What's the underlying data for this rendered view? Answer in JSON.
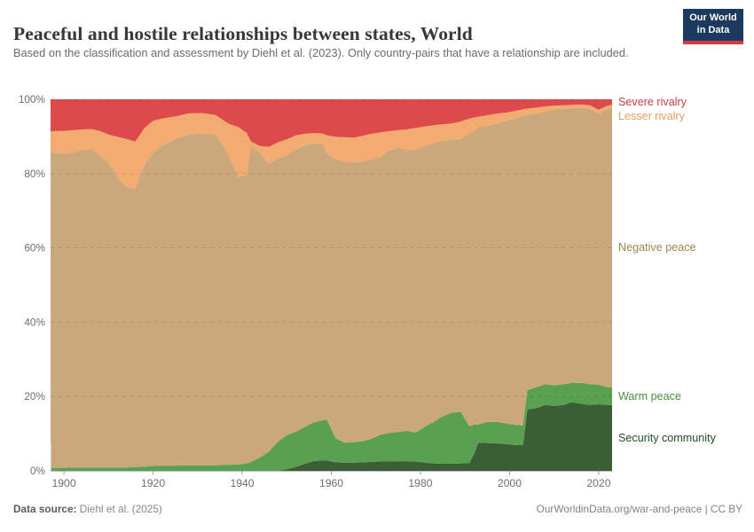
{
  "header": {
    "title": "Peaceful and hostile relationships between states, World",
    "subtitle": "Based on the classification and assessment by Diehl et al. (2023). Only country-pairs that have a relationship are included.",
    "logo": {
      "line1": "Our World",
      "line2": "in Data"
    }
  },
  "footer": {
    "datasource_label": "Data source:",
    "datasource_value": " Diehl et al. (2025)",
    "credit": "OurWorldinData.org/war-and-peace | CC BY"
  },
  "chart_data": {
    "type": "area",
    "stacking": "percent",
    "title": "Peaceful and hostile relationships between states, World",
    "xlabel": "",
    "ylabel": "",
    "xlim": [
      1897,
      2023
    ],
    "ylim": [
      0,
      100
    ],
    "grid": "dashed-horizontal",
    "legend_position": "right",
    "x_ticks": [
      1900,
      1920,
      1940,
      1960,
      1980,
      2000,
      2020
    ],
    "y_ticks": [
      {
        "v": 0,
        "label": "0%"
      },
      {
        "v": 20,
        "label": "20%"
      },
      {
        "v": 40,
        "label": "40%"
      },
      {
        "v": 60,
        "label": "60%"
      },
      {
        "v": 80,
        "label": "80%"
      },
      {
        "v": 100,
        "label": "100%"
      }
    ],
    "x": [
      1897,
      1900,
      1903,
      1906,
      1908,
      1910,
      1912,
      1914,
      1916,
      1918,
      1920,
      1922,
      1925,
      1928,
      1931,
      1934,
      1937,
      1939,
      1941,
      1942,
      1944,
      1946,
      1948,
      1950,
      1952,
      1954,
      1956,
      1958,
      1959,
      1961,
      1963,
      1965,
      1967,
      1969,
      1971,
      1973,
      1975,
      1977,
      1979,
      1981,
      1983,
      1985,
      1987,
      1989,
      1991,
      1992,
      1993,
      1995,
      1997,
      1999,
      2001,
      2003,
      2004,
      2006,
      2008,
      2010,
      2012,
      2014,
      2016,
      2018,
      2020,
      2022,
      2023
    ],
    "series": [
      {
        "name": "Security community",
        "color": "#3c5e35",
        "label_color": "#1f4e28",
        "values": [
          0,
          0,
          0,
          0,
          0,
          0,
          0,
          0,
          0,
          0,
          0,
          0,
          0,
          0,
          0,
          0,
          0,
          0,
          0,
          0,
          0,
          0,
          0,
          0.4,
          1.0,
          1.9,
          2.6,
          2.8,
          2.8,
          2.3,
          2.2,
          2.2,
          2.3,
          2.4,
          2.5,
          2.5,
          2.6,
          2.6,
          2.5,
          2.2,
          2.0,
          1.9,
          1.9,
          2.0,
          2.1,
          4.5,
          7.6,
          7.5,
          7.4,
          7.2,
          7.0,
          6.9,
          16.5,
          16.9,
          17.7,
          17.5,
          17.7,
          18.5,
          18.1,
          17.7,
          17.9,
          17.7,
          17.7
        ]
      },
      {
        "name": "Warm peace",
        "color": "#5aa052",
        "label_color": "#468f3f",
        "values": [
          0.8,
          0.8,
          0.9,
          0.9,
          0.9,
          0.9,
          0.9,
          0.9,
          1.0,
          1.1,
          1.3,
          1.4,
          1.4,
          1.5,
          1.5,
          1.5,
          1.6,
          1.7,
          2.0,
          2.4,
          3.6,
          5.2,
          7.8,
          9.2,
          9.5,
          9.9,
          10.4,
          10.8,
          11.0,
          6.4,
          5.4,
          5.5,
          5.7,
          6.2,
          7.2,
          7.7,
          7.9,
          8.2,
          7.8,
          9.7,
          11.2,
          12.8,
          13.7,
          13.9,
          9.9,
          7.9,
          4.9,
          5.7,
          5.8,
          5.6,
          5.4,
          5.3,
          5.2,
          5.6,
          5.6,
          5.5,
          5.6,
          5.2,
          5.6,
          5.6,
          5.3,
          4.8,
          4.8
        ]
      },
      {
        "name": "Negative peace",
        "color": "#caa87b",
        "label_color": "#a3834f",
        "values": [
          84.9,
          84.6,
          85.1,
          85.8,
          83.9,
          82.1,
          78.1,
          75.6,
          74.9,
          81.2,
          84.2,
          86.1,
          87.9,
          89.0,
          89.3,
          89.1,
          83.4,
          77.4,
          77.5,
          85.0,
          82.0,
          77.5,
          76.2,
          75.3,
          76.0,
          75.8,
          75.1,
          74.6,
          71.7,
          75.2,
          75.6,
          75.3,
          75.3,
          75.2,
          74.6,
          76.0,
          76.5,
          75.5,
          76.2,
          75.5,
          75.1,
          74.2,
          73.5,
          73.4,
          78.8,
          79.1,
          80.0,
          79.7,
          80.2,
          81.3,
          82.4,
          83.3,
          74.1,
          73.7,
          73.3,
          74.3,
          74.1,
          73.9,
          74.0,
          74.2,
          72.8,
          75.0,
          75.2
        ]
      },
      {
        "name": "Lesser rivalry",
        "color": "#f2ab71",
        "label_color": "#e59d66",
        "values": [
          5.7,
          6.1,
          5.8,
          5.3,
          6.7,
          7.5,
          10.9,
          12.8,
          12.7,
          9.9,
          8.7,
          7.3,
          6.1,
          5.7,
          5.5,
          5.2,
          8.4,
          13.5,
          11.5,
          1.2,
          1.8,
          4.5,
          4.4,
          4.3,
          3.8,
          3.1,
          2.8,
          2.6,
          4.8,
          6.0,
          6.6,
          6.7,
          6.9,
          6.9,
          6.8,
          5.2,
          4.7,
          5.6,
          5.8,
          5.3,
          4.7,
          4.4,
          4.4,
          4.7,
          4.0,
          3.6,
          2.8,
          2.8,
          2.7,
          2.3,
          2.0,
          1.8,
          1.7,
          1.6,
          1.5,
          1.0,
          1.0,
          0.9,
          0.9,
          0.9,
          1.2,
          0.8,
          0.8
        ]
      },
      {
        "name": "Severe rivalry",
        "color": "#dc4a4b",
        "label_color": "#cb3d44",
        "values": [
          8.6,
          8.5,
          8.2,
          8.0,
          8.5,
          9.5,
          10.1,
          10.7,
          11.4,
          7.8,
          5.8,
          5.2,
          4.6,
          3.8,
          3.7,
          4.2,
          6.6,
          7.4,
          9.0,
          11.4,
          12.6,
          12.8,
          11.6,
          10.8,
          9.7,
          9.3,
          9.1,
          9.2,
          9.7,
          10.1,
          10.2,
          10.3,
          9.8,
          9.3,
          8.9,
          8.6,
          8.3,
          8.1,
          7.7,
          7.3,
          7.0,
          6.7,
          6.5,
          6.0,
          5.2,
          4.9,
          4.7,
          4.3,
          3.9,
          3.6,
          3.2,
          2.7,
          2.5,
          2.2,
          1.9,
          1.7,
          1.6,
          1.5,
          1.4,
          1.6,
          2.8,
          1.7,
          1.5
        ]
      }
    ]
  }
}
